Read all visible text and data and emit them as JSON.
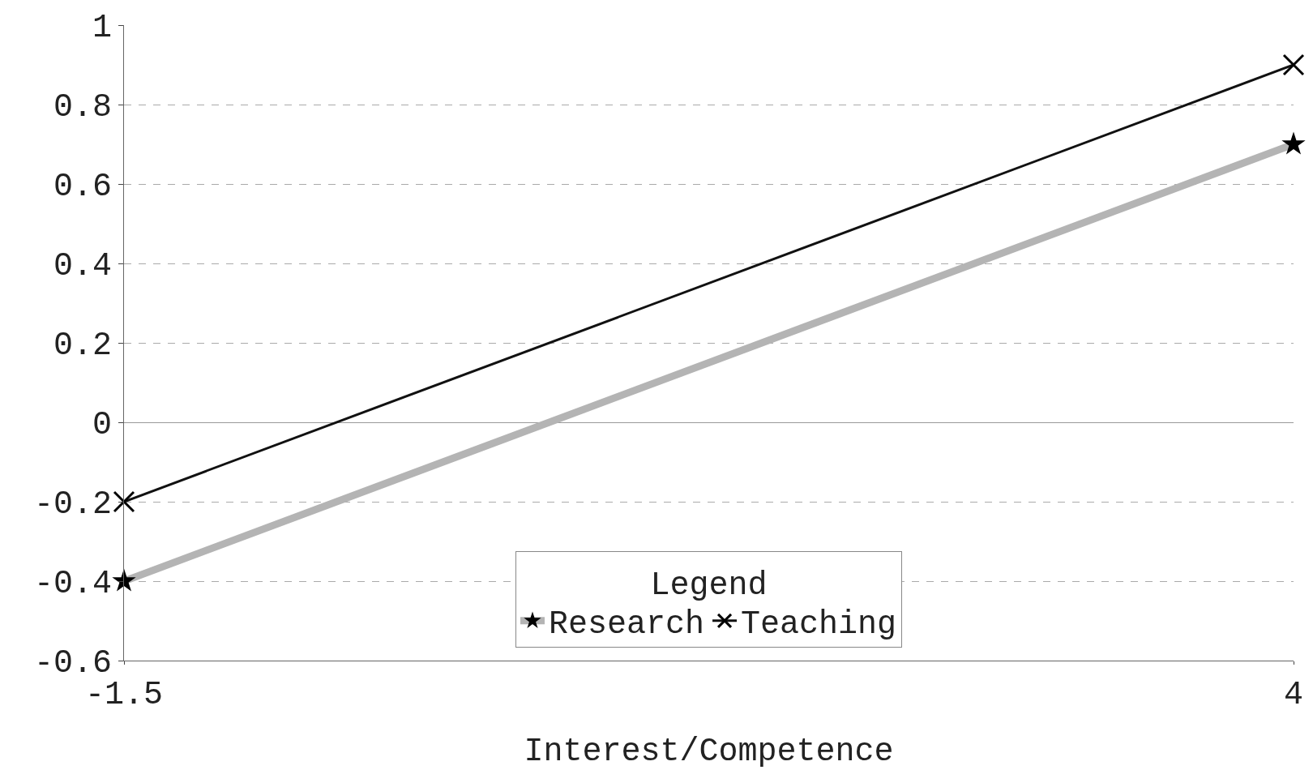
{
  "chart_data": {
    "type": "line",
    "xlabel": "Interest/Competence",
    "legend_title": "Legend",
    "x": [
      -1.5,
      4
    ],
    "series": [
      {
        "name": "Research",
        "color": "#b4b4b4",
        "values": [
          -0.4,
          0.7
        ],
        "marker": "star"
      },
      {
        "name": "Teaching",
        "color": "#111111",
        "values": [
          -0.2,
          0.9
        ],
        "marker": "cross"
      }
    ],
    "xlim": [
      -1.5,
      4
    ],
    "xticks": [
      -1.5,
      4
    ],
    "ylim": [
      -0.6,
      1
    ],
    "yticks": [
      -0.6,
      -0.4,
      -0.2,
      0,
      0.2,
      0.4,
      0.6,
      0.8,
      1
    ],
    "grid": "y",
    "legend": "bottom",
    "line_style": "solid"
  }
}
